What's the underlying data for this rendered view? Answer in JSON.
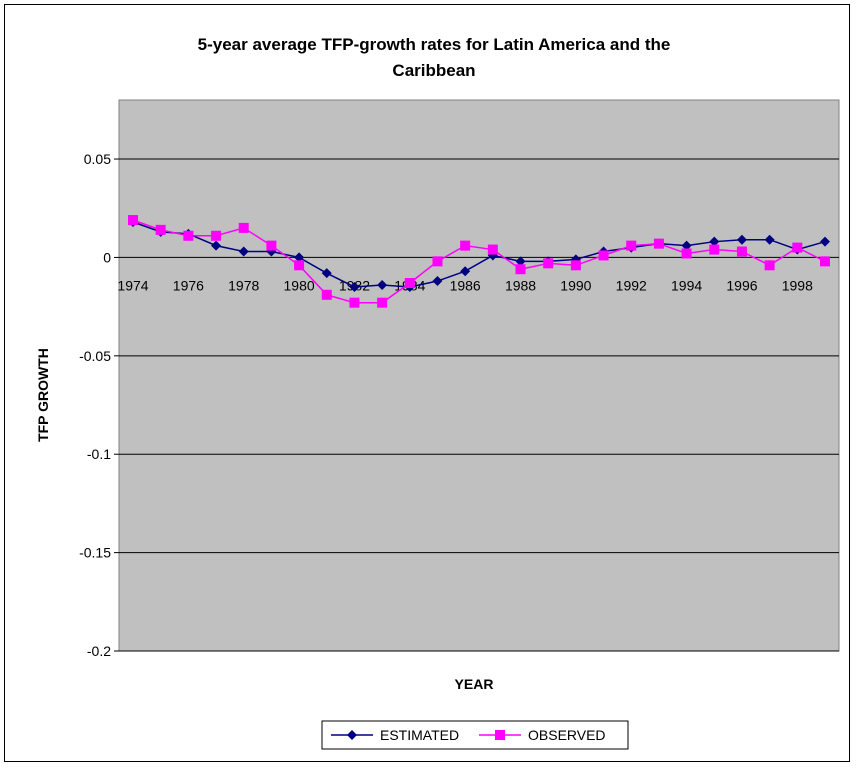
{
  "chart_data": {
    "type": "line",
    "title_line1": "5-year average TFP-growth rates for Latin America and the",
    "title_line2": "Caribbean",
    "xlabel": "YEAR",
    "ylabel": "TFP GROWTH",
    "ylim": [
      -0.2,
      0.08
    ],
    "yticks": [
      0.05,
      0,
      -0.05,
      -0.1,
      -0.15,
      -0.2
    ],
    "ytick_labels": [
      "0.05",
      "0",
      "-0.05",
      "-0.1",
      "-0.15",
      "-0.2"
    ],
    "x": [
      1974,
      1975,
      1976,
      1977,
      1978,
      1979,
      1980,
      1981,
      1982,
      1983,
      1984,
      1985,
      1986,
      1987,
      1988,
      1989,
      1990,
      1991,
      1992,
      1993,
      1994,
      1995,
      1996,
      1997,
      1998,
      1999
    ],
    "xtick_labels": [
      "1974",
      "1976",
      "1978",
      "1980",
      "1982",
      "1984",
      "1986",
      "1988",
      "1990",
      "1992",
      "1994",
      "1996",
      "1998"
    ],
    "grid": true,
    "plot_background": "#c0c0c0",
    "legend_position": "bottom",
    "series": [
      {
        "name": "ESTIMATED",
        "color": "#000080",
        "marker": "diamond",
        "values": [
          0.018,
          0.013,
          0.012,
          0.006,
          0.003,
          0.003,
          0.0,
          -0.008,
          -0.015,
          -0.014,
          -0.015,
          -0.012,
          -0.007,
          0.001,
          -0.002,
          -0.002,
          -0.001,
          0.003,
          0.005,
          0.007,
          0.006,
          0.008,
          0.009,
          0.009,
          0.004,
          0.008
        ]
      },
      {
        "name": "OBSERVED",
        "color": "#ff00ff",
        "marker": "square",
        "values": [
          0.019,
          0.014,
          0.011,
          0.011,
          0.015,
          0.006,
          -0.004,
          -0.019,
          -0.023,
          -0.023,
          -0.013,
          -0.002,
          0.006,
          0.004,
          -0.006,
          -0.003,
          -0.004,
          0.001,
          0.006,
          0.007,
          0.002,
          0.004,
          0.003,
          -0.004,
          0.005,
          -0.002
        ]
      }
    ]
  }
}
